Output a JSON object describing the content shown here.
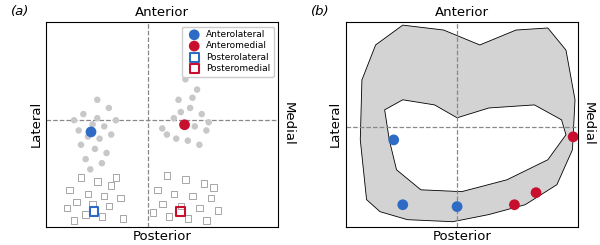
{
  "chart_data": [
    {
      "type": "scatter",
      "panel": "(a)",
      "side_labels": {
        "top": "Anterior",
        "bottom": "Posterior",
        "left": "Lateral",
        "right": "Medial"
      },
      "xlim": [
        0,
        100
      ],
      "ylim": [
        0,
        100
      ],
      "xticks": [],
      "yticks": [],
      "tick_labels": false,
      "reference_lines": {
        "x": 44,
        "y": 52
      },
      "legend": "upper right",
      "series": [
        {
          "color": "#c8c8c8",
          "marker": "filled_circle",
          "x": [
            22,
            27,
            16,
            20,
            25,
            14,
            18,
            23,
            28,
            15,
            21,
            26,
            17,
            24,
            12,
            30,
            19,
            22,
            60,
            65,
            57,
            62,
            67,
            55,
            59,
            64,
            69,
            52,
            56,
            61,
            66,
            50,
            63,
            58,
            70
          ],
          "y": [
            62,
            58,
            55,
            50,
            49,
            47,
            44,
            43,
            45,
            40,
            38,
            36,
            33,
            31,
            52,
            52,
            28,
            53,
            72,
            67,
            62,
            58,
            55,
            53,
            50,
            49,
            47,
            45,
            43,
            42,
            40,
            48,
            63,
            56,
            51
          ]
        },
        {
          "color": "#a6a6a6",
          "marker": "open_square",
          "x": [
            15,
            22,
            28,
            10,
            18,
            25,
            32,
            13,
            20,
            27,
            9,
            17,
            24,
            33,
            30,
            12,
            52,
            60,
            68,
            48,
            55,
            63,
            71,
            50,
            58,
            66,
            74,
            53,
            61,
            69,
            46,
            72
          ],
          "y": [
            24,
            22,
            20,
            18,
            16,
            15,
            14,
            12,
            11,
            10,
            9,
            6,
            5,
            4,
            24,
            3,
            25,
            23,
            21,
            18,
            16,
            15,
            14,
            11,
            10,
            9,
            8,
            5,
            4,
            3,
            7,
            19
          ]
        },
        {
          "name": "Anterolateral",
          "color": "#2e6bc4",
          "marker": "filled_circle",
          "x": [
            19.3
          ],
          "y": [
            46.3
          ]
        },
        {
          "name": "Anteromedial",
          "color": "#c8102e",
          "marker": "filled_circle",
          "x": [
            59.6
          ],
          "y": [
            49.8
          ]
        },
        {
          "name": "Posterolateral",
          "color": "#2e6bc4",
          "marker": "open_square",
          "x": [
            20.6
          ],
          "y": [
            7.3
          ]
        },
        {
          "name": "Posteromedial",
          "color": "#c8102e",
          "marker": "open_square",
          "x": [
            57.9
          ],
          "y": [
            7.3
          ]
        }
      ]
    },
    {
      "type": "scatter",
      "panel": "(b)",
      "side_labels": {
        "top": "Anterior",
        "bottom": "Posterior",
        "left": "Lateral",
        "right": "Medial"
      },
      "xlim": [
        0,
        100
      ],
      "ylim": [
        0,
        100
      ],
      "xticks": [],
      "yticks": [],
      "tick_labels": false,
      "reference_lines": {
        "x": 48,
        "y": 48.8
      },
      "shape_color": "#d3d3d3",
      "outline": [
        [
          9.0,
          13.2
        ],
        [
          6.3,
          42.4
        ],
        [
          7.0,
          71.7
        ],
        [
          12.9,
          88.8
        ],
        [
          24.6,
          98.5
        ],
        [
          42.2,
          96.1
        ],
        [
          57.8,
          88.8
        ],
        [
          73.4,
          96.1
        ],
        [
          87.1,
          97.1
        ],
        [
          94.9,
          86.3
        ],
        [
          98.8,
          62.0
        ],
        [
          97.7,
          37.6
        ],
        [
          91.0,
          20.5
        ],
        [
          77.3,
          10.7
        ],
        [
          61.7,
          5.9
        ],
        [
          46.1,
          2.4
        ],
        [
          26.6,
          3.4
        ],
        [
          14.8,
          7.3
        ]
      ],
      "inner_outline": [
        [
          16.8,
          57.1
        ],
        [
          24.6,
          62.0
        ],
        [
          38.3,
          59.5
        ],
        [
          48.0,
          53.2
        ],
        [
          61.7,
          58.0
        ],
        [
          81.3,
          59.5
        ],
        [
          93.0,
          52.2
        ],
        [
          94.9,
          44.9
        ],
        [
          87.1,
          32.7
        ],
        [
          69.5,
          22.9
        ],
        [
          50.0,
          17.1
        ],
        [
          32.4,
          18.0
        ],
        [
          21.9,
          27.8
        ],
        [
          18.8,
          42.4
        ]
      ],
      "series": [
        {
          "marker": "filled_circle",
          "x": [
            20.7,
            98.0,
            24.6,
            48.0,
            72.7,
            82.0
          ],
          "y": [
            42.4,
            43.9,
            10.7,
            9.8,
            10.7,
            16.6
          ],
          "colors": [
            "#2e6bc4",
            "#c8102e",
            "#2e6bc4",
            "#2e6bc4",
            "#c8102e",
            "#c8102e"
          ]
        }
      ]
    }
  ]
}
